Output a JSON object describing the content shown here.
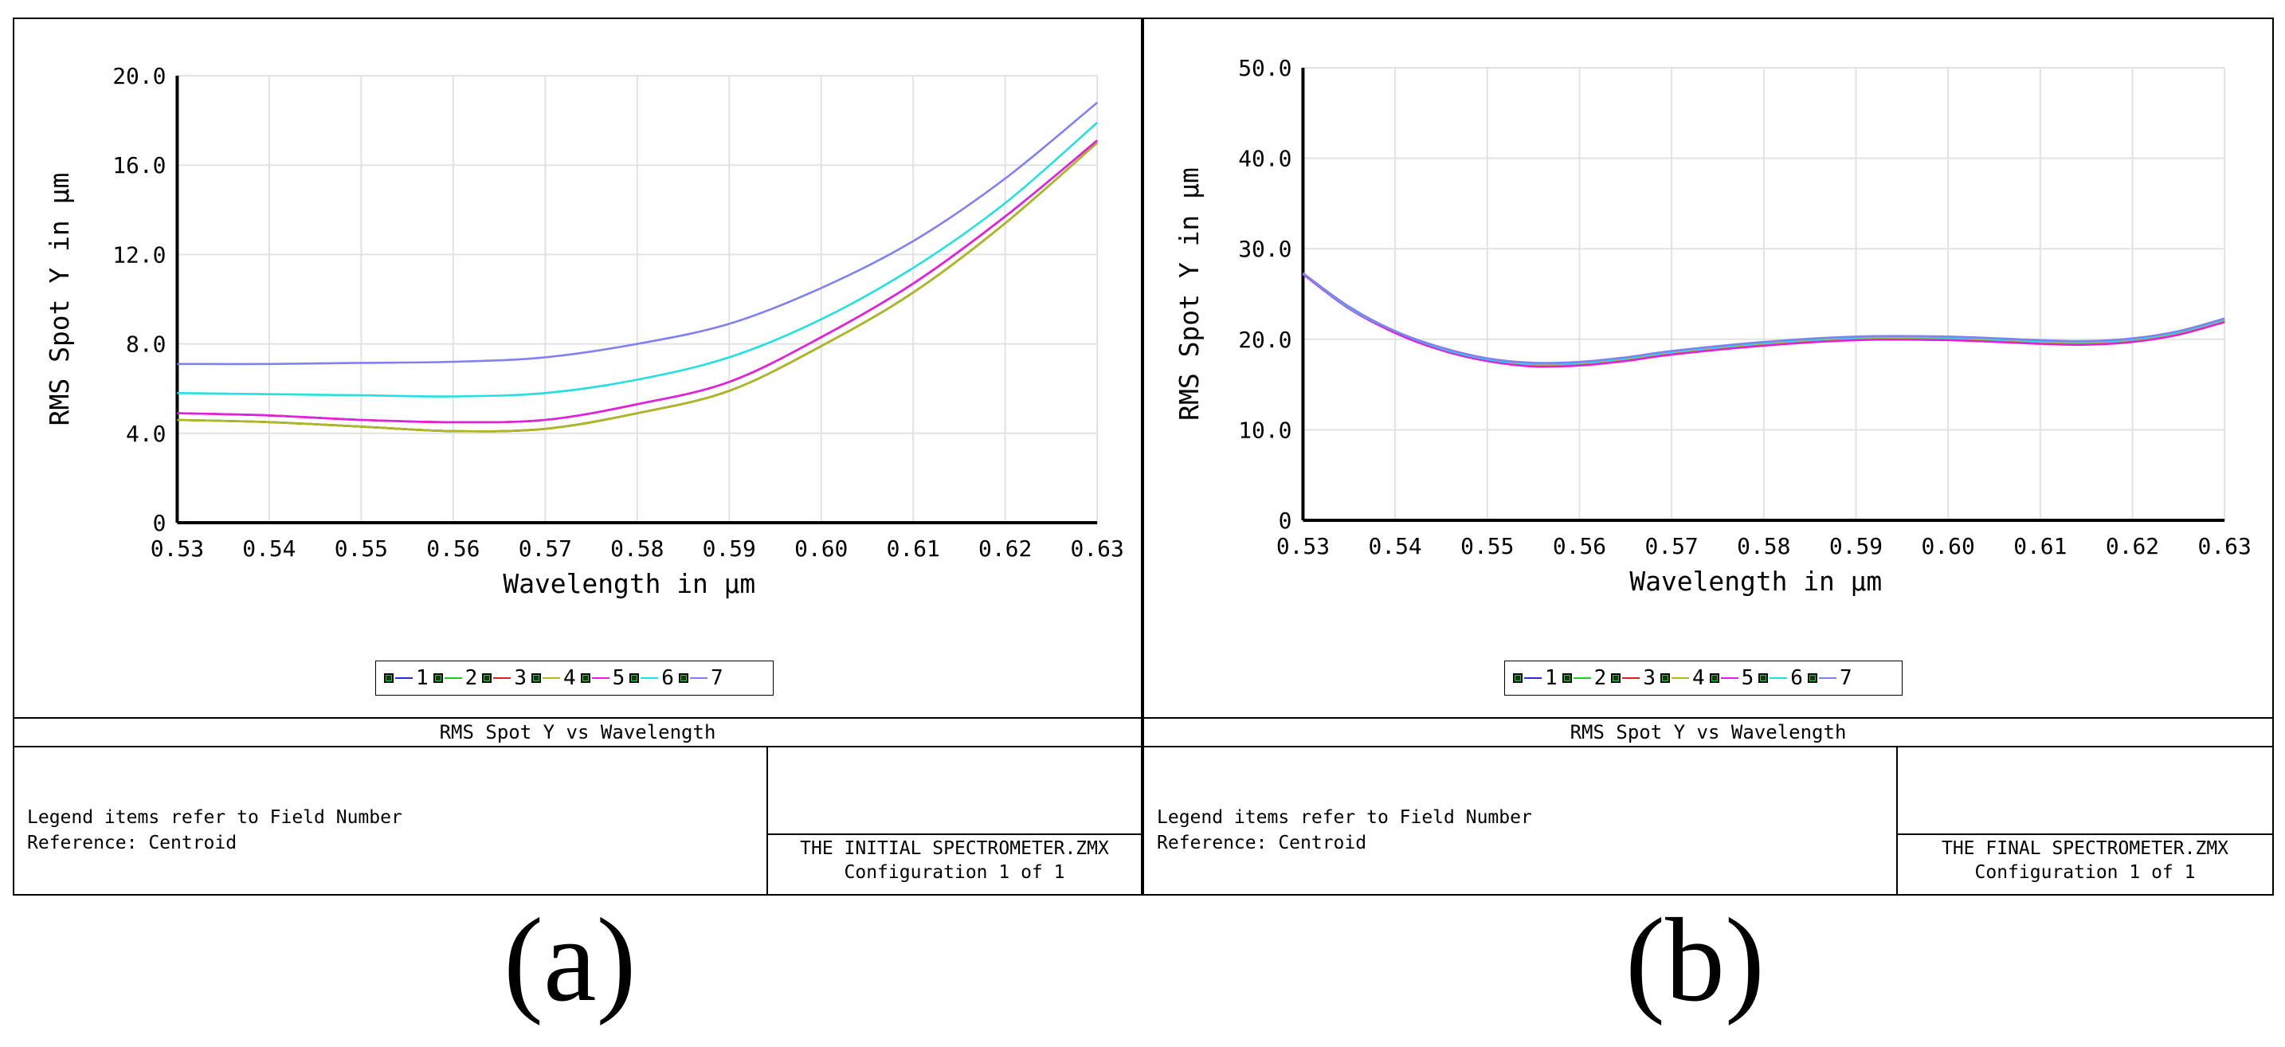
{
  "panels": [
    {
      "id": "a",
      "caption": "(a)",
      "plot_title": "RMS Spot Y vs Wavelength",
      "notes": [
        "Legend items refer to Field Number",
        "Reference: Centroid"
      ],
      "file_name": "THE INITIAL SPECTROMETER.ZMX",
      "configuration": "Configuration 1 of 1"
    },
    {
      "id": "b",
      "caption": "(b)",
      "plot_title": "RMS Spot Y vs Wavelength",
      "notes": [
        "Legend items refer to Field Number",
        "Reference: Centroid"
      ],
      "file_name": "THE FINAL SPECTROMETER.ZMX",
      "configuration": "Configuration 1 of 1"
    }
  ],
  "chart_data": [
    {
      "type": "line",
      "title": "RMS Spot Y vs Wavelength",
      "xlabel": "Wavelength in µm",
      "ylabel": "RMS Spot Y in µm",
      "xlim": [
        0.53,
        0.63
      ],
      "ylim": [
        0,
        20
      ],
      "xticks": [
        "0.53",
        "0.54",
        "0.55",
        "0.56",
        "0.57",
        "0.58",
        "0.59",
        "0.60",
        "0.61",
        "0.62",
        "0.63"
      ],
      "yticks": [
        "0",
        "4.0",
        "8.0",
        "12.0",
        "16.0",
        "20.0"
      ],
      "grid": true,
      "legend_position": "bottom",
      "x": [
        0.53,
        0.54,
        0.55,
        0.56,
        0.57,
        0.58,
        0.59,
        0.6,
        0.61,
        0.62,
        0.63
      ],
      "series": [
        {
          "name": "1",
          "color": "#2b2bd9",
          "values": [
            4.6,
            4.5,
            4.3,
            4.1,
            4.2,
            4.9,
            5.9,
            7.9,
            10.3,
            13.4,
            17.0
          ]
        },
        {
          "name": "2",
          "color": "#22cc22",
          "values": [
            4.6,
            4.5,
            4.3,
            4.1,
            4.2,
            4.9,
            5.9,
            7.9,
            10.3,
            13.4,
            17.0
          ]
        },
        {
          "name": "3",
          "color": "#e02020",
          "values": [
            4.9,
            4.8,
            4.6,
            4.5,
            4.6,
            5.3,
            6.3,
            8.3,
            10.7,
            13.7,
            17.1
          ]
        },
        {
          "name": "4",
          "color": "#b5b520",
          "values": [
            4.6,
            4.5,
            4.3,
            4.1,
            4.2,
            4.9,
            5.9,
            7.9,
            10.3,
            13.4,
            17.0
          ]
        },
        {
          "name": "5",
          "color": "#e020e0",
          "values": [
            4.9,
            4.8,
            4.6,
            4.5,
            4.6,
            5.3,
            6.3,
            8.3,
            10.7,
            13.7,
            17.1
          ]
        },
        {
          "name": "6",
          "color": "#22e0e0",
          "values": [
            5.8,
            5.75,
            5.7,
            5.65,
            5.8,
            6.4,
            7.4,
            9.1,
            11.4,
            14.3,
            17.9
          ]
        },
        {
          "name": "7",
          "color": "#8080f0",
          "values": [
            7.1,
            7.1,
            7.15,
            7.2,
            7.4,
            8.0,
            8.9,
            10.5,
            12.6,
            15.4,
            18.8
          ]
        }
      ]
    },
    {
      "type": "line",
      "title": "RMS Spot Y vs Wavelength",
      "xlabel": "Wavelength in µm",
      "ylabel": "RMS Spot Y in µm",
      "xlim": [
        0.53,
        0.63
      ],
      "ylim": [
        0,
        50
      ],
      "xticks": [
        "0.53",
        "0.54",
        "0.55",
        "0.56",
        "0.57",
        "0.58",
        "0.59",
        "0.60",
        "0.61",
        "0.62",
        "0.63"
      ],
      "yticks": [
        "0",
        "10.0",
        "20.0",
        "30.0",
        "40.0",
        "50.0"
      ],
      "grid": true,
      "legend_position": "bottom",
      "x": [
        0.53,
        0.535,
        0.54,
        0.545,
        0.55,
        0.555,
        0.56,
        0.565,
        0.57,
        0.58,
        0.59,
        0.6,
        0.61,
        0.615,
        0.62,
        0.625,
        0.63
      ],
      "series": [
        {
          "name": "1",
          "color": "#2b2bd9",
          "values": [
            27.2,
            23.5,
            20.8,
            18.9,
            17.7,
            17.2,
            17.3,
            17.8,
            18.5,
            19.5,
            20.1,
            20.1,
            19.7,
            19.6,
            19.9,
            20.7,
            22.1
          ]
        },
        {
          "name": "2",
          "color": "#22cc22",
          "values": [
            27.2,
            23.5,
            20.8,
            18.9,
            17.7,
            17.2,
            17.3,
            17.8,
            18.5,
            19.5,
            20.1,
            20.1,
            19.7,
            19.6,
            19.9,
            20.7,
            22.1
          ]
        },
        {
          "name": "3",
          "color": "#e02020",
          "values": [
            27.2,
            23.4,
            20.7,
            18.8,
            17.6,
            17.1,
            17.2,
            17.7,
            18.4,
            19.4,
            20.0,
            20.0,
            19.6,
            19.5,
            19.8,
            20.6,
            22.0
          ]
        },
        {
          "name": "4",
          "color": "#b5b520",
          "values": [
            27.2,
            23.5,
            20.8,
            18.9,
            17.7,
            17.2,
            17.3,
            17.8,
            18.5,
            19.5,
            20.1,
            20.1,
            19.7,
            19.6,
            19.9,
            20.7,
            22.1
          ]
        },
        {
          "name": "5",
          "color": "#e020e0",
          "values": [
            27.2,
            23.4,
            20.7,
            18.8,
            17.6,
            17.0,
            17.1,
            17.6,
            18.3,
            19.3,
            19.9,
            19.9,
            19.5,
            19.4,
            19.7,
            20.5,
            21.9
          ]
        },
        {
          "name": "6",
          "color": "#22e0e0",
          "values": [
            27.3,
            23.5,
            20.9,
            19.0,
            17.8,
            17.3,
            17.4,
            17.9,
            18.6,
            19.6,
            20.2,
            20.2,
            19.8,
            19.7,
            20.0,
            20.8,
            22.2
          ]
        },
        {
          "name": "7",
          "color": "#8080f0",
          "values": [
            27.3,
            23.6,
            20.9,
            19.1,
            17.9,
            17.4,
            17.5,
            18.0,
            18.7,
            19.7,
            20.3,
            20.3,
            19.9,
            19.8,
            20.1,
            20.9,
            22.3
          ]
        }
      ]
    }
  ]
}
